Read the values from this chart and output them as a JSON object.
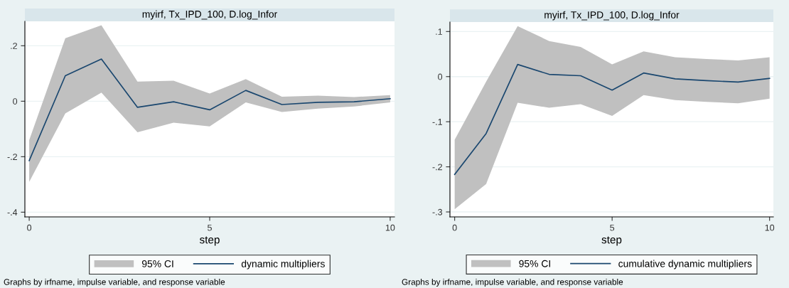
{
  "chart_data": [
    {
      "type": "line",
      "title": "myirf, Tx_IPD_100, D.log_Infor",
      "xlabel": "step",
      "x": [
        0,
        1,
        2,
        3,
        4,
        5,
        6,
        7,
        8,
        9,
        10
      ],
      "series": [
        {
          "name": "dynamic multipliers",
          "type": "line",
          "color": "#1a476f",
          "values": [
            -0.214,
            0.092,
            0.152,
            -0.022,
            -0.002,
            -0.031,
            0.039,
            -0.012,
            -0.004,
            -0.002,
            0.009
          ],
          "lower": [
            -0.291,
            -0.044,
            0.031,
            -0.112,
            -0.077,
            -0.091,
            -0.004,
            -0.039,
            -0.027,
            -0.019,
            -0.004
          ],
          "upper": [
            -0.14,
            0.227,
            0.274,
            0.071,
            0.074,
            0.028,
            0.08,
            0.016,
            0.02,
            0.015,
            0.022
          ]
        }
      ],
      "xlim": [
        -0.12,
        10.12
      ],
      "xticks": [
        0,
        5,
        10
      ],
      "ylim": [
        -0.417,
        0.288
      ],
      "yticks": [
        {
          "value": -0.4,
          "label": "-.4"
        },
        {
          "value": -0.2,
          "label": "-.2"
        },
        0,
        {
          "value": 0.2,
          "label": ".2"
        }
      ],
      "grid": "y",
      "legend": "bottom",
      "marker": "none",
      "line_style": "solid",
      "annotations": [
        "95% CI",
        "Graphs by irfname, impulse variable, and response variable"
      ]
    },
    {
      "type": "line",
      "title": "myirf, Tx_IPD_100, D.log_Infor",
      "xlabel": "step",
      "x": [
        0,
        1,
        2,
        3,
        4,
        5,
        6,
        7,
        8,
        9,
        10
      ],
      "series": [
        {
          "name": "cumulative dynamic multipliers",
          "type": "line",
          "color": "#1a476f",
          "values": [
            -0.217,
            -0.126,
            0.027,
            0.005,
            0.002,
            -0.03,
            0.008,
            -0.005,
            -0.009,
            -0.012,
            -0.004
          ],
          "lower": [
            -0.294,
            -0.238,
            -0.058,
            -0.069,
            -0.061,
            -0.087,
            -0.041,
            -0.052,
            -0.056,
            -0.059,
            -0.049
          ],
          "upper": [
            -0.14,
            -0.011,
            0.112,
            0.079,
            0.066,
            0.027,
            0.056,
            0.043,
            0.039,
            0.036,
            0.043
          ]
        }
      ],
      "xlim": [
        -0.15,
        10.12
      ],
      "xticks": [
        0,
        5,
        10
      ],
      "ylim": [
        -0.311,
        0.121
      ],
      "yticks": [
        {
          "value": -0.3,
          "label": "-.3"
        },
        {
          "value": -0.2,
          "label": "-.2"
        },
        {
          "value": -0.1,
          "label": "-.1"
        },
        0,
        {
          "value": 0.1,
          "label": ".1"
        }
      ],
      "grid": "y",
      "legend": "bottom",
      "marker": "none",
      "line_style": "solid",
      "annotations": [
        "95% CI",
        "Graphs by irfname, impulse variable, and response variable"
      ]
    }
  ]
}
